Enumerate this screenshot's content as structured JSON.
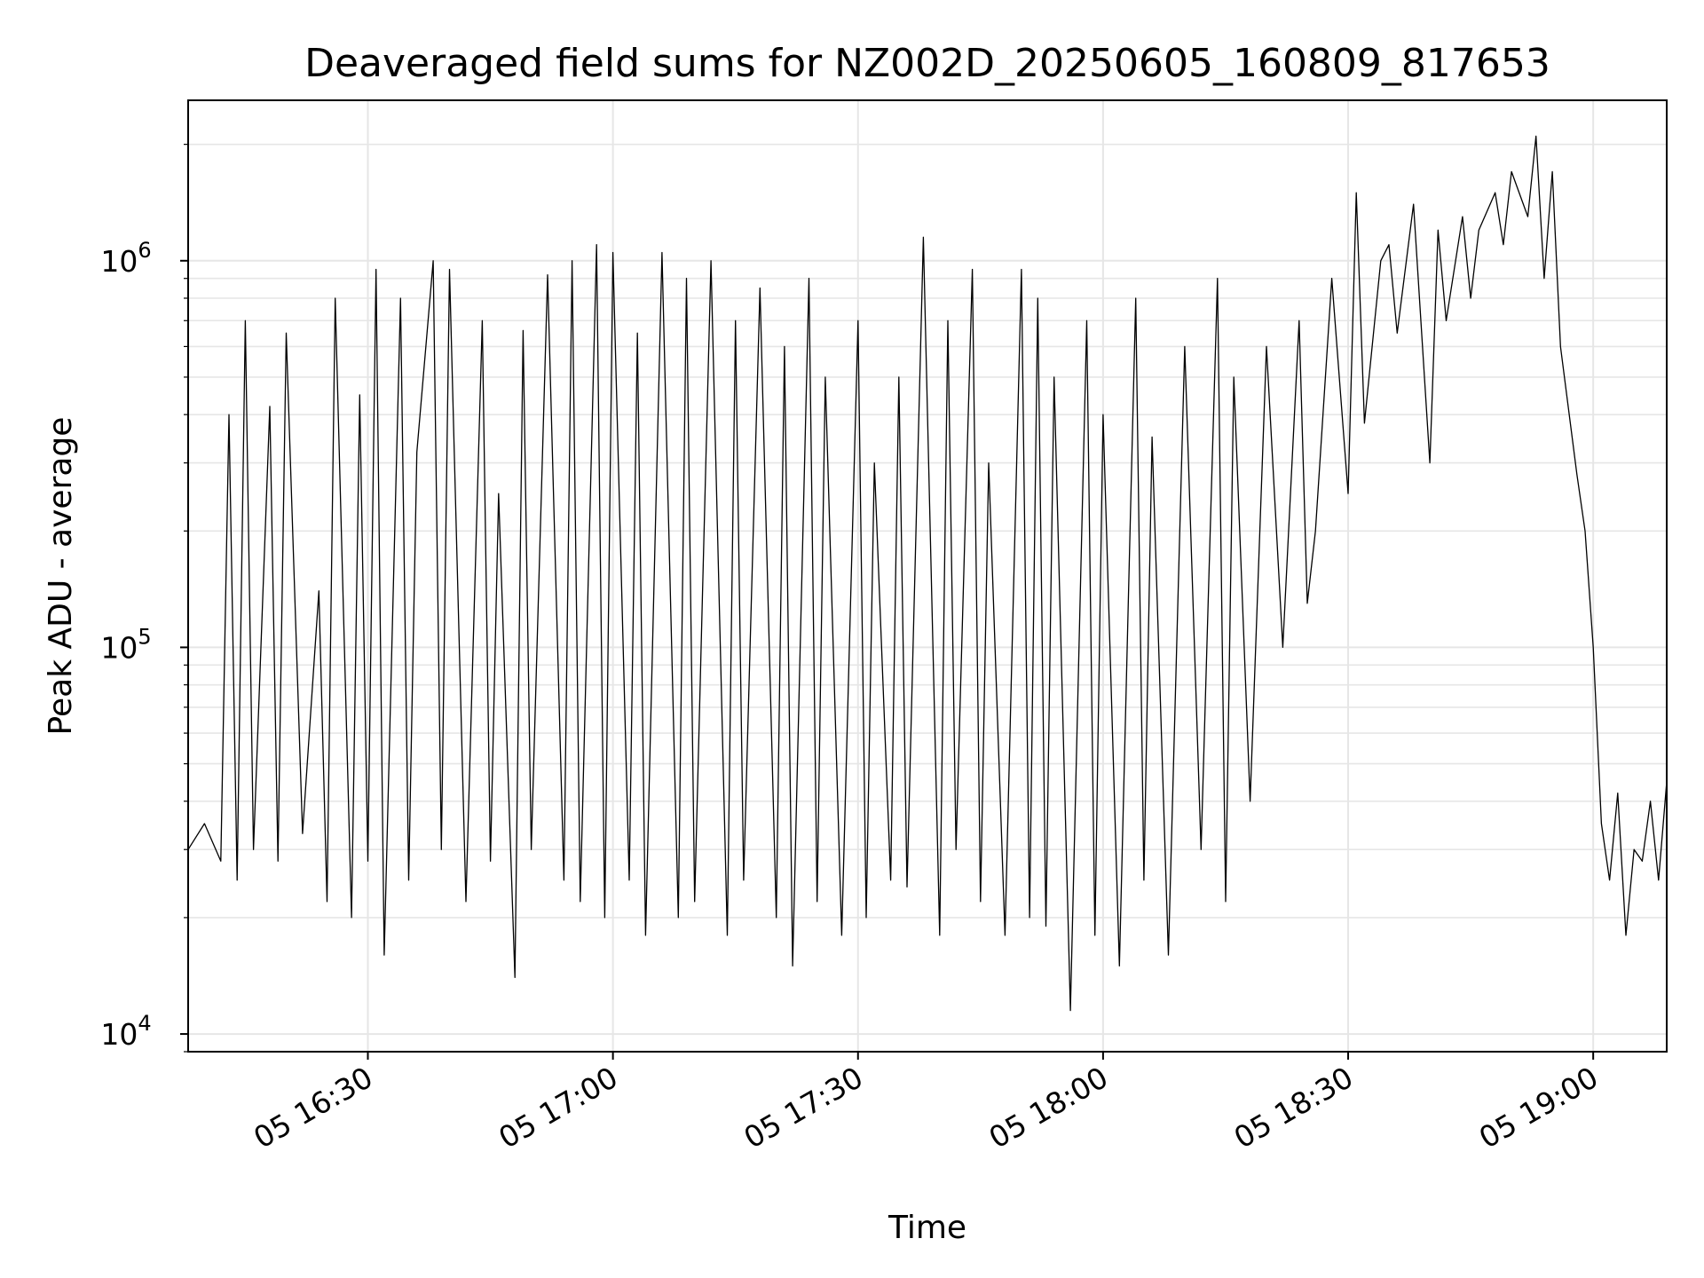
{
  "chart_data": {
    "type": "line",
    "title": "Deaveraged field sums for NZ002D_20250605_160809_817653",
    "xlabel": "Time",
    "ylabel": "Peak ADU - average",
    "y_scale": "log",
    "ylim": [
      9000,
      2600000
    ],
    "xlim": [
      "05 16:08",
      "05 19:09"
    ],
    "grid": true,
    "legend": "none",
    "colors": {
      "line": "#000000",
      "grid": "#e6e6e6",
      "axes": "#000000"
    },
    "x_ticks": [
      {
        "time": "16:30",
        "label": "05 16:30"
      },
      {
        "time": "17:00",
        "label": "05 17:00"
      },
      {
        "time": "17:30",
        "label": "05 17:30"
      },
      {
        "time": "18:00",
        "label": "05 18:00"
      },
      {
        "time": "18:30",
        "label": "05 18:30"
      },
      {
        "time": "19:00",
        "label": "05 19:00"
      }
    ],
    "y_ticks": [
      {
        "base": "10",
        "exp": "4",
        "value": 10000
      },
      {
        "base": "10",
        "exp": "5",
        "value": 100000
      },
      {
        "base": "10",
        "exp": "6",
        "value": 1000000
      }
    ],
    "series": [
      {
        "x": [
          "16:08",
          "16:10",
          "16:12",
          "16:13",
          "16:14",
          "16:15",
          "16:16",
          "16:18",
          "16:19",
          "16:20",
          "16:22",
          "16:24",
          "16:25",
          "16:26",
          "16:28",
          "16:29",
          "16:30",
          "16:31",
          "16:32",
          "16:34",
          "16:35",
          "16:36",
          "16:38",
          "16:39",
          "16:40",
          "16:42",
          "16:44",
          "16:45",
          "16:46",
          "16:48",
          "16:49",
          "16:50",
          "16:52",
          "16:54",
          "16:55",
          "16:56",
          "16:58",
          "16:59",
          "17:00",
          "17:02",
          "17:03",
          "17:04",
          "17:06",
          "17:08",
          "17:09",
          "17:10",
          "17:12",
          "17:14",
          "17:15",
          "17:16",
          "17:18",
          "17:20",
          "17:21",
          "17:22",
          "17:24",
          "17:25",
          "17:26",
          "17:28",
          "17:30",
          "17:31",
          "17:32",
          "17:34",
          "17:35",
          "17:36",
          "17:38",
          "17:40",
          "17:41",
          "17:42",
          "17:44",
          "17:45",
          "17:46",
          "17:48",
          "17:50",
          "17:51",
          "17:52",
          "17:53",
          "17:54",
          "17:56",
          "17:58",
          "17:59",
          "18:00",
          "18:02",
          "18:04",
          "18:05",
          "18:06",
          "18:08",
          "18:10",
          "18:12",
          "18:14",
          "18:15",
          "18:16",
          "18:18",
          "18:20",
          "18:22",
          "18:24",
          "18:25",
          "18:26",
          "18:28",
          "18:30",
          "18:31",
          "18:32",
          "18:34",
          "18:35",
          "18:36",
          "18:38",
          "18:40",
          "18:41",
          "18:42",
          "18:44",
          "18:45",
          "18:46",
          "18:48",
          "18:49",
          "18:50",
          "18:52",
          "18:53",
          "18:54",
          "18:55",
          "18:56",
          "18:58",
          "18:59",
          "19:00",
          "19:01",
          "19:02",
          "19:03",
          "19:04",
          "19:05",
          "19:06",
          "19:07",
          "19:08",
          "19:09"
        ],
        "values": [
          30000,
          35000,
          28000,
          400000,
          25000,
          700000,
          30000,
          420000,
          28000,
          650000,
          33000,
          140000,
          22000,
          800000,
          20000,
          450000,
          28000,
          950000,
          16000,
          800000,
          25000,
          320000,
          1000000,
          30000,
          950000,
          22000,
          700000,
          28000,
          250000,
          14000,
          660000,
          30000,
          920000,
          25000,
          1000000,
          22000,
          1100000,
          20000,
          1050000,
          25000,
          650000,
          18000,
          1050000,
          20000,
          900000,
          22000,
          1000000,
          18000,
          700000,
          25000,
          850000,
          20000,
          600000,
          15000,
          900000,
          22000,
          500000,
          18000,
          700000,
          20000,
          300000,
          25000,
          500000,
          24000,
          1150000,
          18000,
          700000,
          30000,
          950000,
          22000,
          300000,
          18000,
          950000,
          20000,
          800000,
          19000,
          500000,
          11500,
          700000,
          18000,
          400000,
          15000,
          800000,
          25000,
          350000,
          16000,
          600000,
          30000,
          900000,
          22000,
          500000,
          40000,
          600000,
          100000,
          700000,
          130000,
          200000,
          900000,
          250000,
          1500000,
          380000,
          1000000,
          1100000,
          650000,
          1400000,
          300000,
          1200000,
          700000,
          1300000,
          800000,
          1200000,
          1500000,
          1100000,
          1700000,
          1300000,
          2100000,
          900000,
          1700000,
          600000,
          280000,
          200000,
          100000,
          35000,
          25000,
          42000,
          18000,
          30000,
          28000,
          40000,
          25000,
          45000
        ]
      }
    ]
  }
}
